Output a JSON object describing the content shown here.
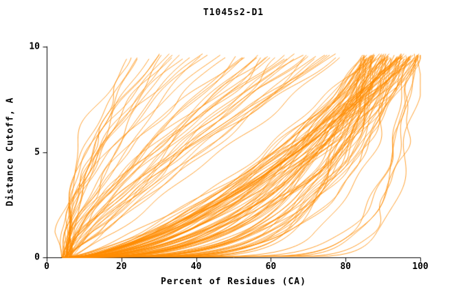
{
  "chart_data": {
    "type": "line",
    "title": "T1045s2-D1",
    "xlabel": "Percent of Residues (CA)",
    "ylabel": "Distance Cutoff, A",
    "xlim": [
      0,
      100
    ],
    "ylim": [
      0,
      10
    ],
    "xticks": [
      0,
      20,
      40,
      60,
      80,
      100
    ],
    "yticks": [
      0,
      5,
      10
    ],
    "grid": false,
    "legend": "none",
    "line_color": "#ff8c00",
    "axis_color": "#000000",
    "y_top_clip": 9.68,
    "x_start_range": [
      4,
      7
    ],
    "curves_format": "[x_top_percent_reached_at_max_cutoff, rise_shape_exponent]",
    "curves": [
      [
        22,
        2.2
      ],
      [
        24,
        1.9
      ],
      [
        26,
        2.4
      ],
      [
        28,
        1.7
      ],
      [
        30,
        2.1
      ],
      [
        32,
        1.6
      ],
      [
        33,
        2.3
      ],
      [
        35,
        1.8
      ],
      [
        36,
        1.5
      ],
      [
        38,
        2.0
      ],
      [
        40,
        1.65
      ],
      [
        42,
        2.2
      ],
      [
        43,
        1.45
      ],
      [
        45,
        1.75
      ],
      [
        25,
        1.55
      ],
      [
        29,
        1.95
      ],
      [
        34,
        1.7
      ],
      [
        44,
        2.05
      ],
      [
        50,
        1.6
      ],
      [
        52,
        1.2
      ],
      [
        54,
        1.7
      ],
      [
        56,
        1.0
      ],
      [
        58,
        1.4
      ],
      [
        60,
        1.1
      ],
      [
        62,
        1.5
      ],
      [
        64,
        0.95
      ],
      [
        66,
        1.3
      ],
      [
        68,
        1.05
      ],
      [
        70,
        1.45
      ],
      [
        72,
        0.9
      ],
      [
        74,
        1.25
      ],
      [
        76,
        1.0
      ],
      [
        78,
        1.35
      ],
      [
        80,
        0.92
      ],
      [
        55,
        1.5
      ],
      [
        57,
        1.15
      ],
      [
        61,
        1.28
      ],
      [
        63,
        1.4
      ],
      [
        65,
        1.02
      ],
      [
        67,
        1.22
      ],
      [
        69,
        1.1
      ],
      [
        71,
        1.3
      ],
      [
        73,
        0.98
      ],
      [
        75,
        1.18
      ],
      [
        77,
        1.08
      ],
      [
        79,
        1.2
      ],
      [
        53,
        1.33
      ],
      [
        59,
        1.26
      ],
      [
        86,
        0.14
      ],
      [
        88,
        0.32
      ],
      [
        90,
        0.5
      ],
      [
        92,
        0.2
      ],
      [
        94,
        0.42
      ],
      [
        96,
        0.6
      ],
      [
        98,
        0.26
      ],
      [
        100,
        0.38
      ],
      [
        87,
        0.55
      ],
      [
        89,
        0.18
      ],
      [
        91,
        0.46
      ],
      [
        93,
        0.28
      ],
      [
        95,
        0.64
      ],
      [
        97,
        0.22
      ],
      [
        99,
        0.4
      ],
      [
        86,
        0.58
      ],
      [
        88,
        0.16
      ],
      [
        90,
        0.34
      ],
      [
        92,
        0.52
      ],
      [
        94,
        0.24
      ],
      [
        96,
        0.44
      ],
      [
        98,
        0.62
      ],
      [
        100,
        0.3
      ],
      [
        87,
        0.48
      ],
      [
        89,
        0.66
      ],
      [
        91,
        0.2
      ],
      [
        93,
        0.36
      ],
      [
        95,
        0.54
      ],
      [
        97,
        0.28
      ],
      [
        99,
        0.46
      ],
      [
        85,
        0.15
      ],
      [
        86.5,
        0.33
      ],
      [
        88,
        0.51
      ],
      [
        89.5,
        0.21
      ],
      [
        91,
        0.39
      ],
      [
        92.5,
        0.57
      ],
      [
        94,
        0.27
      ],
      [
        95.5,
        0.45
      ],
      [
        97,
        0.63
      ],
      [
        98.5,
        0.23
      ],
      [
        100,
        0.41
      ],
      [
        85.5,
        0.59
      ],
      [
        87,
        0.17
      ],
      [
        88.5,
        0.35
      ],
      [
        90,
        0.53
      ],
      [
        91.5,
        0.25
      ],
      [
        93,
        0.43
      ],
      [
        94.5,
        0.61
      ],
      [
        96,
        0.31
      ],
      [
        97.5,
        0.49
      ],
      [
        99,
        0.67
      ],
      [
        85,
        0.19
      ],
      [
        86,
        0.37
      ],
      [
        87.5,
        0.55
      ],
      [
        89,
        0.29
      ],
      [
        90.5,
        0.47
      ],
      [
        92,
        0.65
      ],
      [
        93.5,
        0.13
      ],
      [
        95,
        0.5
      ],
      [
        96.5,
        0.68
      ],
      [
        98,
        0.36
      ],
      [
        99.5,
        0.54
      ],
      [
        85.5,
        0.26
      ],
      [
        87,
        0.44
      ],
      [
        88.5,
        0.62
      ],
      [
        90,
        0.32
      ],
      [
        91.5,
        0.7
      ],
      [
        93,
        0.4
      ],
      [
        94.5,
        0.58
      ],
      [
        96,
        0.28
      ],
      [
        97.5,
        0.46
      ],
      [
        99,
        0.64
      ],
      [
        85,
        0.34
      ],
      [
        86.5,
        0.52
      ],
      [
        88,
        0.7
      ],
      [
        89.5,
        0.4
      ],
      [
        91,
        0.58
      ],
      [
        92.5,
        0.3
      ],
      [
        94,
        0.48
      ],
      [
        95.5,
        0.66
      ],
      [
        97,
        0.38
      ],
      [
        98.5,
        0.56
      ],
      [
        100,
        0.74
      ],
      [
        86,
        0.44
      ],
      [
        88,
        0.25
      ],
      [
        90,
        0.6
      ],
      [
        92,
        0.35
      ],
      [
        94,
        0.55
      ],
      [
        96,
        0.45
      ],
      [
        98,
        0.65
      ],
      [
        99,
        0.07
      ],
      [
        100,
        0.06
      ],
      [
        100,
        0.1
      ],
      [
        98,
        0.08
      ],
      [
        99.5,
        0.12
      ],
      [
        97,
        0.09
      ]
    ]
  }
}
